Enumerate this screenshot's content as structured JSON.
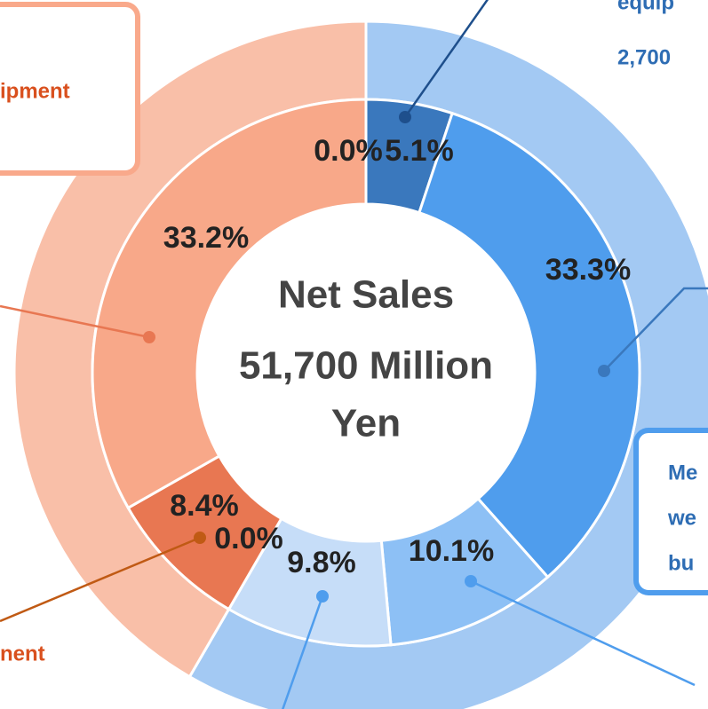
{
  "chart_data": {
    "type": "donut",
    "center_label": [
      "Net Sales",
      "51,700 Million",
      "Yen"
    ],
    "inner": {
      "values": [
        5.1,
        33.3,
        10.1,
        9.8,
        0.0,
        8.4,
        33.2,
        0.0
      ],
      "value_labels": [
        "5.1%",
        "33.3%",
        "10.1%",
        "9.8%",
        "0.0%",
        "8.4%",
        "33.2%",
        "0.0%"
      ],
      "colors": [
        "#3a78bd",
        "#4f9ded",
        "#8dc0f5",
        "#c6ddf8",
        "#c6ddf8",
        "#e87752",
        "#f8a889",
        "#f8a889"
      ]
    },
    "outer": {
      "values": [
        58.3,
        41.6
      ],
      "colors": [
        "#a3c9f3",
        "#f9bfa8"
      ]
    },
    "callout_texts": [
      "equip",
      "2,700",
      "ipment",
      "Me",
      "we",
      "bu",
      "nent"
    ]
  }
}
